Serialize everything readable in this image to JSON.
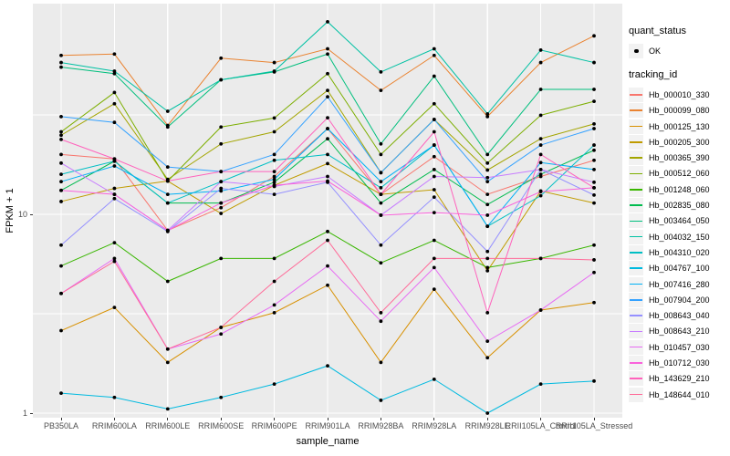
{
  "chart_data": {
    "type": "line",
    "title": "",
    "xlabel": "sample_name",
    "ylabel": "FPKM + 1",
    "y_scale": "log10",
    "y_tick_labels": [
      "1",
      "10"
    ],
    "y_ticks": [
      1,
      10
    ],
    "y_minor_ticks": [
      3.1623,
      31.623
    ],
    "ylim": [
      0.95,
      115
    ],
    "grid": true,
    "legend_position": "right",
    "x": [
      "PB350LA",
      "RRIM600LA",
      "RRIM600LE",
      "RRIM600SE",
      "RRIM600PE",
      "RRIM901LA",
      "RRIM928BA",
      "RRIM928LA",
      "RRIM928LE",
      "RRII105LA_Control",
      "RRII105LA_Stressed"
    ],
    "quant_status": {
      "title": "quant_status",
      "items": [
        {
          "label": "OK",
          "marker": "black-point"
        }
      ]
    },
    "series_legend_title": "tracking_id",
    "series": [
      {
        "name": "Hb_000010_330",
        "color": "#F8766D",
        "values": [
          20,
          19,
          8.3,
          10.8,
          15.5,
          27,
          12.6,
          19.5,
          12.6,
          15.5,
          18.7
        ]
      },
      {
        "name": "Hb_000099_080",
        "color": "#EA8331",
        "values": [
          63,
          64,
          28,
          61,
          58,
          68,
          42,
          63,
          31,
          58,
          79
        ]
      },
      {
        "name": "Hb_000125_130",
        "color": "#D89000",
        "values": [
          2.6,
          3.4,
          1.8,
          2.7,
          3.2,
          4.4,
          1.8,
          4.2,
          1.9,
          3.3,
          3.6
        ]
      },
      {
        "name": "Hb_000205_300",
        "color": "#C09B00",
        "values": [
          11.6,
          13.5,
          14.7,
          10.1,
          14,
          18,
          12.6,
          13.3,
          5.2,
          13.1,
          11.4
        ]
      },
      {
        "name": "Hb_000365_390",
        "color": "#A3A500",
        "values": [
          25,
          36,
          15,
          22.6,
          26,
          42,
          16.2,
          30,
          16.7,
          24,
          28.5
        ]
      },
      {
        "name": "Hb_000512_060",
        "color": "#7CAE00",
        "values": [
          26,
          41,
          14.7,
          27.5,
          30.5,
          51,
          20,
          36,
          18.1,
          31.5,
          37
        ]
      },
      {
        "name": "Hb_001248_060",
        "color": "#39B600",
        "values": [
          5.5,
          7.2,
          4.6,
          6,
          6,
          8.2,
          5.7,
          7.4,
          5.4,
          6,
          7
        ]
      },
      {
        "name": "Hb_002835_080",
        "color": "#00BB4E",
        "values": [
          13.2,
          18.5,
          11.4,
          11.4,
          14.5,
          24,
          11.4,
          16.8,
          11.2,
          15.9,
          21
        ]
      },
      {
        "name": "Hb_003464_050",
        "color": "#00BF7D",
        "values": [
          55,
          51,
          27.5,
          47.5,
          52,
          64,
          22.6,
          49.5,
          20,
          42.5,
          42.5
        ]
      },
      {
        "name": "Hb_004032_150",
        "color": "#00C1A3",
        "values": [
          58,
          52.5,
          33,
          47.5,
          52.5,
          93,
          52,
          68,
          32,
          67,
          58
        ]
      },
      {
        "name": "Hb_004310_020",
        "color": "#00BFC4",
        "values": [
          15.9,
          18.5,
          11.4,
          14.6,
          18.7,
          20,
          13.6,
          22.3,
          8.7,
          12.4,
          22.3
        ]
      },
      {
        "name": "Hb_004767_100",
        "color": "#00BAE0",
        "values": [
          1.26,
          1.2,
          1.05,
          1.2,
          1.4,
          1.73,
          1.16,
          1.48,
          1.0,
          1.4,
          1.45
        ]
      },
      {
        "name": "Hb_007416_280",
        "color": "#00B0F6",
        "values": [
          14.6,
          17.5,
          12.6,
          13.1,
          15,
          27,
          14.6,
          22.3,
          8.7,
          18.2,
          16.8
        ]
      },
      {
        "name": "Hb_007904_200",
        "color": "#35A2FF",
        "values": [
          31,
          29,
          17.3,
          16.4,
          20,
          39,
          16.2,
          30,
          14.6,
          22.3,
          27
        ]
      },
      {
        "name": "Hb_008643_040",
        "color": "#9590FF",
        "values": [
          7,
          12,
          8.2,
          13.5,
          12.6,
          14.5,
          7,
          12.2,
          6.5,
          16.8,
          12.5
        ]
      },
      {
        "name": "Hb_008643_210",
        "color": "#C77CFF",
        "values": [
          18.1,
          12.6,
          8.3,
          14.6,
          13.8,
          15.5,
          9.9,
          15.5,
          15.3,
          16.8,
          14.5
        ]
      },
      {
        "name": "Hb_010457_030",
        "color": "#E76BF3",
        "values": [
          4,
          6,
          2.1,
          2.5,
          3.5,
          5.5,
          2.9,
          5.4,
          2.3,
          3.3,
          5.1
        ]
      },
      {
        "name": "Hb_010712_030",
        "color": "#FA62DB",
        "values": [
          13.2,
          12.6,
          8.3,
          11.4,
          14,
          14.7,
          9.9,
          10.2,
          9.9,
          13,
          13.6
        ]
      },
      {
        "name": "Hb_143629_210",
        "color": "#FF62BC",
        "values": [
          23.8,
          19,
          14.7,
          16.4,
          16.4,
          30.6,
          12.6,
          26,
          3.2,
          20,
          13.6
        ]
      },
      {
        "name": "Hb_148644_010",
        "color": "#FF6A98",
        "values": [
          4,
          5.8,
          2.1,
          2.7,
          4.6,
          7.4,
          3.2,
          6,
          6,
          6,
          5.9
        ]
      }
    ],
    "styles": {
      "panel_bg": "#EBEBEB",
      "grid_color": "#FFFFFF",
      "point_color": "#000000",
      "axis_text_color": "#4D4D4D",
      "legend_key_bg": "#F2F2F2"
    }
  }
}
